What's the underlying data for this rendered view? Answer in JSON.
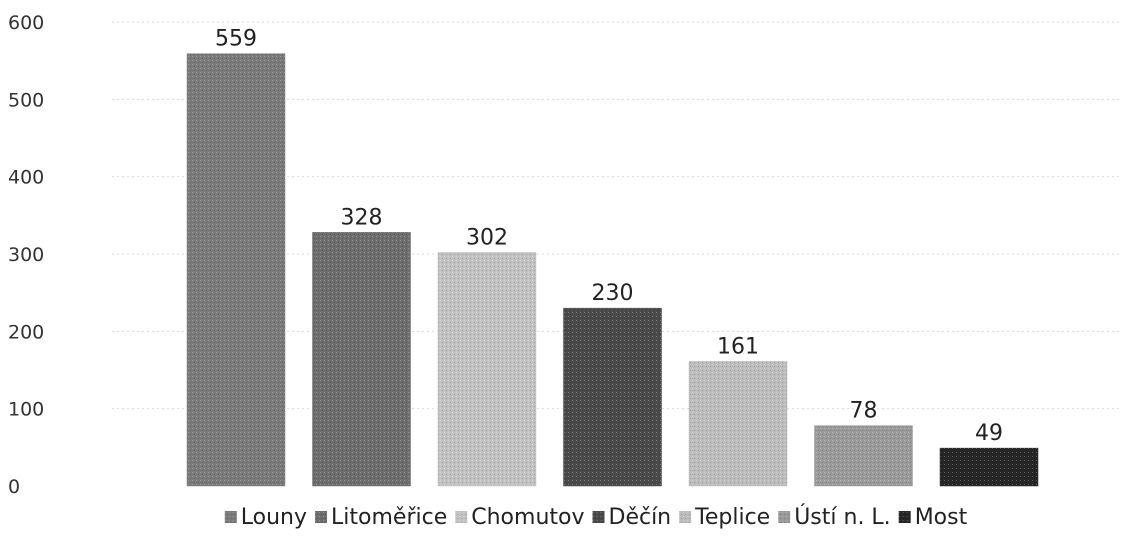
{
  "chart_data": {
    "type": "bar",
    "title": "",
    "xlabel": "",
    "ylabel": "",
    "categories": [
      "Louny",
      "Litoměřice",
      "Chomutov",
      "Děčín",
      "Teplice",
      "Ústí n. L.",
      "Most"
    ],
    "values": [
      559,
      328,
      302,
      230,
      161,
      78,
      49
    ],
    "data_labels": [
      "559",
      "328",
      "302",
      "230",
      "161",
      "78",
      "49"
    ],
    "ylim": [
      0,
      600
    ],
    "yticks": [
      0,
      100,
      200,
      300,
      400,
      500,
      600
    ],
    "ytick_labels": [
      "0",
      "100",
      "200",
      "300",
      "400",
      "500",
      "600"
    ],
    "grid": true,
    "legend_position": "bottom",
    "colors": [
      "#7a7a7a",
      "#6e6e6e",
      "#c2c2c2",
      "#4a4a4a",
      "#bdbdbd",
      "#9a9a9a",
      "#262626"
    ]
  }
}
